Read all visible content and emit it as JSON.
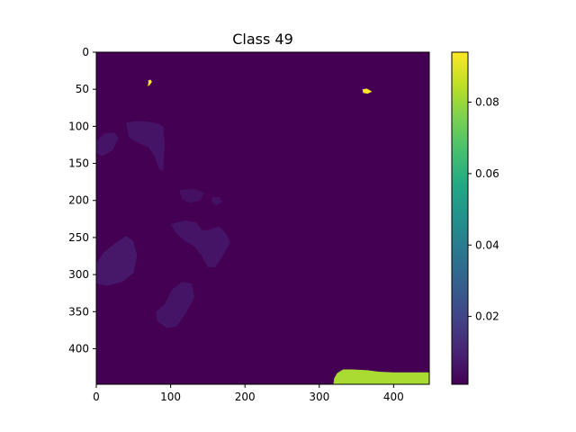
{
  "chart_data": {
    "type": "heatmap",
    "title": "Class 49",
    "xlabel": "",
    "ylabel": "",
    "x_range": [
      0,
      448
    ],
    "y_range": [
      448,
      0
    ],
    "x_ticks": [
      0,
      100,
      200,
      300,
      400
    ],
    "y_ticks": [
      0,
      50,
      100,
      150,
      200,
      250,
      300,
      350,
      400
    ],
    "colormap": "viridis",
    "colorbar": {
      "range": [
        0.001,
        0.094
      ],
      "ticks": [
        0.02,
        0.04,
        0.06,
        0.08
      ],
      "tick_labels": [
        "0.02",
        "0.04",
        "0.06",
        "0.08"
      ]
    },
    "background_value": 0.001,
    "regions": [
      {
        "label": "blob-top-left-small",
        "value": 0.094,
        "points": [
          [
            70,
            38
          ],
          [
            73,
            37
          ],
          [
            75,
            40
          ],
          [
            72,
            44
          ],
          [
            69,
            46
          ],
          [
            70,
            42
          ]
        ]
      },
      {
        "label": "blob-top-right-small",
        "value": 0.094,
        "points": [
          [
            358,
            50
          ],
          [
            364,
            49
          ],
          [
            371,
            53
          ],
          [
            365,
            56
          ],
          [
            359,
            55
          ]
        ]
      },
      {
        "label": "blob-bottom-right",
        "value": 0.082,
        "points": [
          [
            319,
            448
          ],
          [
            320,
            440
          ],
          [
            324,
            433
          ],
          [
            332,
            428
          ],
          [
            345,
            428
          ],
          [
            365,
            429
          ],
          [
            380,
            431
          ],
          [
            400,
            432
          ],
          [
            448,
            432
          ],
          [
            448,
            448
          ]
        ]
      },
      {
        "label": "faint-1",
        "value": 0.006,
        "points": [
          [
            0,
            120
          ],
          [
            10,
            110
          ],
          [
            24,
            108
          ],
          [
            30,
            116
          ],
          [
            22,
            132
          ],
          [
            8,
            140
          ],
          [
            0,
            136
          ]
        ]
      },
      {
        "label": "faint-2",
        "value": 0.006,
        "points": [
          [
            40,
            95
          ],
          [
            55,
            93
          ],
          [
            70,
            94
          ],
          [
            82,
            96
          ],
          [
            90,
            100
          ],
          [
            92,
            125
          ],
          [
            90,
            160
          ],
          [
            85,
            158
          ],
          [
            78,
            140
          ],
          [
            70,
            128
          ],
          [
            56,
            122
          ],
          [
            44,
            115
          ]
        ]
      },
      {
        "label": "faint-3",
        "value": 0.005,
        "points": [
          [
            112,
            186
          ],
          [
            132,
            184
          ],
          [
            145,
            190
          ],
          [
            140,
            200
          ],
          [
            125,
            203
          ],
          [
            115,
            198
          ]
        ]
      },
      {
        "label": "faint-4",
        "value": 0.005,
        "points": [
          [
            155,
            196
          ],
          [
            165,
            195
          ],
          [
            170,
            202
          ],
          [
            162,
            206
          ],
          [
            156,
            203
          ]
        ]
      },
      {
        "label": "faint-5",
        "value": 0.006,
        "points": [
          [
            100,
            232
          ],
          [
            120,
            227
          ],
          [
            135,
            230
          ],
          [
            142,
            240
          ],
          [
            150,
            240
          ],
          [
            165,
            235
          ],
          [
            175,
            245
          ],
          [
            180,
            257
          ],
          [
            170,
            275
          ],
          [
            160,
            290
          ],
          [
            150,
            290
          ],
          [
            142,
            275
          ],
          [
            132,
            262
          ],
          [
            120,
            255
          ],
          [
            108,
            245
          ]
        ]
      },
      {
        "label": "faint-6",
        "value": 0.007,
        "points": [
          [
            0,
            285
          ],
          [
            10,
            270
          ],
          [
            25,
            258
          ],
          [
            40,
            248
          ],
          [
            50,
            255
          ],
          [
            55,
            275
          ],
          [
            50,
            298
          ],
          [
            35,
            310
          ],
          [
            15,
            315
          ],
          [
            0,
            312
          ]
        ]
      },
      {
        "label": "faint-7",
        "value": 0.006,
        "points": [
          [
            80,
            350
          ],
          [
            92,
            340
          ],
          [
            102,
            320
          ],
          [
            116,
            310
          ],
          [
            128,
            312
          ],
          [
            132,
            330
          ],
          [
            122,
            350
          ],
          [
            108,
            370
          ],
          [
            95,
            372
          ],
          [
            82,
            363
          ]
        ]
      }
    ]
  }
}
